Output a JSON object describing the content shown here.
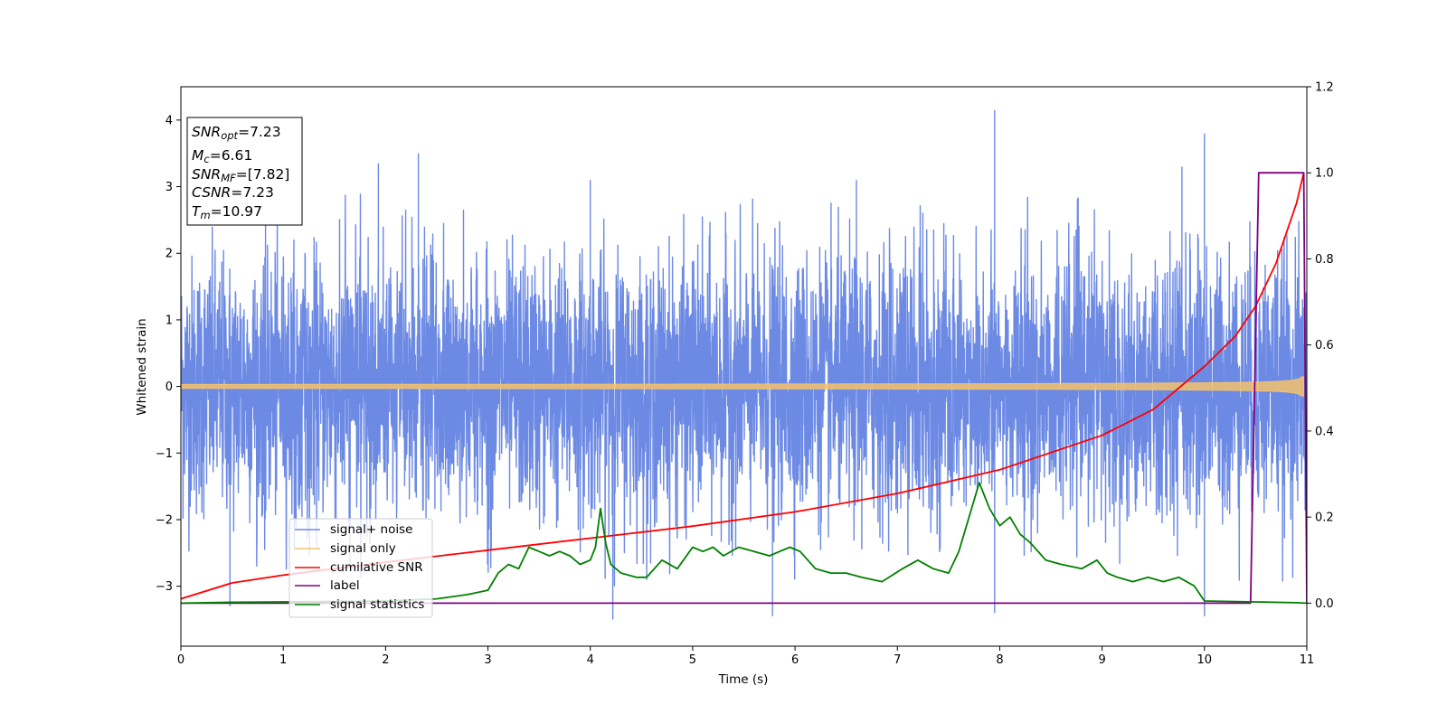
{
  "chart_data": {
    "type": "line",
    "xlabel": "Time (s)",
    "ylabel": "Whitened strain",
    "xlim": [
      0,
      11
    ],
    "ylim": [
      -3.9,
      4.5
    ],
    "y2lim": [
      -0.1,
      1.2
    ],
    "xticks": [
      0,
      1,
      2,
      3,
      4,
      5,
      6,
      7,
      8,
      9,
      10,
      11
    ],
    "yticks": [
      -3,
      -2,
      -1,
      0,
      1,
      2,
      3,
      4
    ],
    "y2ticks": [
      0.0,
      0.2,
      0.4,
      0.6,
      0.8,
      1.0,
      1.2
    ],
    "grid": false,
    "legend_position": "lower-left",
    "annotation": {
      "snr_opt": "=7.23",
      "mc": "=6.61",
      "snr_mf": "=[7.82]",
      "csnr": "=7.23",
      "tm": "=10.97"
    },
    "series": [
      {
        "name": "signal+ noise",
        "axis": "left",
        "color": "#6c8ae4",
        "kind": "noise",
        "x_range": [
          0,
          11
        ],
        "typical_range": [
          -2.2,
          2.2
        ],
        "peaks": [
          [
            0.48,
            -3.3
          ],
          [
            4.22,
            -3.5
          ],
          [
            5.78,
            -3.45
          ],
          [
            7.95,
            4.15
          ],
          [
            7.95,
            -3.4
          ],
          [
            10.0,
            3.8
          ],
          [
            10.0,
            -3.45
          ],
          [
            2.32,
            3.5
          ],
          [
            1.93,
            3.35
          ],
          [
            4.0,
            3.1
          ],
          [
            6.6,
            3.1
          ],
          [
            9.78,
            3.3
          ]
        ]
      },
      {
        "name": "signal only",
        "axis": "left",
        "color": "#f5c16c",
        "kind": "chirp",
        "x_range": [
          0,
          10.97
        ],
        "amplitude_start": 0.03,
        "amplitude_end": 0.55
      },
      {
        "name": "cumilative SNR",
        "axis": "right",
        "color": "#ff0000",
        "x": [
          0.0,
          0.5,
          1.0,
          2.0,
          3.0,
          4.0,
          5.0,
          6.0,
          7.0,
          8.0,
          9.0,
          9.5,
          10.0,
          10.3,
          10.5,
          10.7,
          10.9,
          10.97
        ],
        "y": [
          0.01,
          0.047,
          0.065,
          0.095,
          0.123,
          0.151,
          0.179,
          0.212,
          0.255,
          0.31,
          0.39,
          0.45,
          0.55,
          0.62,
          0.69,
          0.79,
          0.93,
          1.0
        ]
      },
      {
        "name": "label",
        "axis": "right",
        "color": "#800080",
        "x": [
          0.0,
          10.45,
          10.53,
          10.97,
          11.0
        ],
        "y": [
          0.0,
          0.0,
          1.0,
          1.0,
          0.0
        ]
      },
      {
        "name": "signal statistics",
        "axis": "right",
        "color": "#008000",
        "x": [
          0.0,
          0.5,
          1.0,
          2.0,
          2.5,
          2.8,
          3.0,
          3.1,
          3.2,
          3.3,
          3.4,
          3.5,
          3.6,
          3.7,
          3.8,
          3.9,
          4.0,
          4.05,
          4.1,
          4.15,
          4.2,
          4.3,
          4.45,
          4.55,
          4.7,
          4.85,
          5.0,
          5.1,
          5.2,
          5.3,
          5.45,
          5.6,
          5.75,
          5.85,
          5.95,
          6.05,
          6.2,
          6.35,
          6.5,
          6.65,
          6.85,
          7.05,
          7.2,
          7.35,
          7.5,
          7.6,
          7.7,
          7.8,
          7.9,
          8.0,
          8.1,
          8.2,
          8.3,
          8.45,
          8.6,
          8.8,
          8.95,
          9.05,
          9.15,
          9.3,
          9.45,
          9.6,
          9.75,
          9.9,
          10.0,
          10.5,
          10.9,
          11.0
        ],
        "y": [
          0.0,
          0.002,
          0.003,
          0.005,
          0.01,
          0.02,
          0.03,
          0.07,
          0.09,
          0.08,
          0.13,
          0.12,
          0.11,
          0.12,
          0.11,
          0.09,
          0.1,
          0.13,
          0.22,
          0.14,
          0.09,
          0.07,
          0.06,
          0.06,
          0.1,
          0.08,
          0.13,
          0.12,
          0.13,
          0.11,
          0.13,
          0.12,
          0.11,
          0.12,
          0.13,
          0.12,
          0.08,
          0.07,
          0.07,
          0.06,
          0.05,
          0.08,
          0.1,
          0.08,
          0.07,
          0.12,
          0.2,
          0.28,
          0.22,
          0.18,
          0.2,
          0.16,
          0.14,
          0.1,
          0.09,
          0.08,
          0.1,
          0.07,
          0.06,
          0.05,
          0.06,
          0.05,
          0.06,
          0.04,
          0.005,
          0.003,
          0.001,
          0.0
        ]
      }
    ]
  }
}
